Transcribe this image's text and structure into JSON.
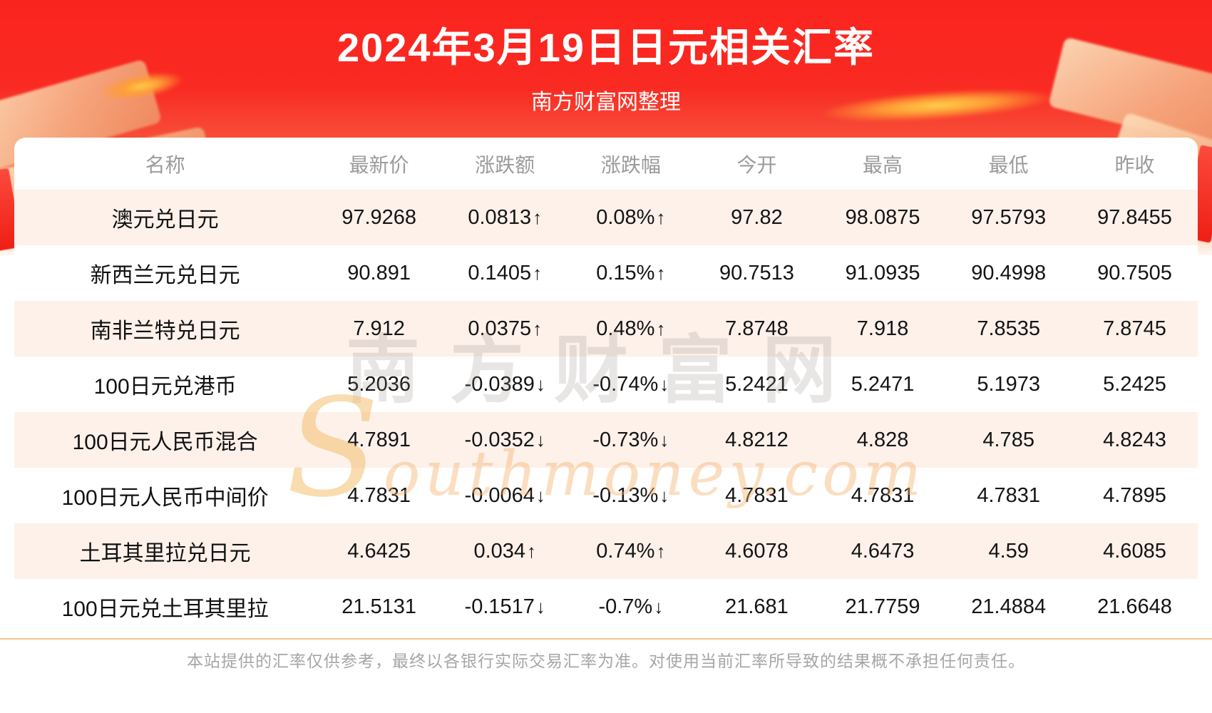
{
  "header": {
    "title": "2024年3月19日日元相关汇率",
    "subtitle": "南方财富网整理"
  },
  "chart_data": {
    "type": "table",
    "columns": [
      "名称",
      "最新价",
      "涨跌额",
      "涨跌幅",
      "今开",
      "最高",
      "最低",
      "昨收"
    ],
    "rows": [
      {
        "name": "澳元兑日元",
        "latest": "97.9268",
        "change": "0.0813",
        "change_pct": "0.08%",
        "direction": "up",
        "open": "97.82",
        "high": "98.0875",
        "low": "97.5793",
        "prev_close": "97.8455"
      },
      {
        "name": "新西兰元兑日元",
        "latest": "90.891",
        "change": "0.1405",
        "change_pct": "0.15%",
        "direction": "up",
        "open": "90.7513",
        "high": "91.0935",
        "low": "90.4998",
        "prev_close": "90.7505"
      },
      {
        "name": "南非兰特兑日元",
        "latest": "7.912",
        "change": "0.0375",
        "change_pct": "0.48%",
        "direction": "up",
        "open": "7.8748",
        "high": "7.918",
        "low": "7.8535",
        "prev_close": "7.8745"
      },
      {
        "name": "100日元兑港币",
        "latest": "5.2036",
        "change": "-0.0389",
        "change_pct": "-0.74%",
        "direction": "down",
        "open": "5.2421",
        "high": "5.2471",
        "low": "5.1973",
        "prev_close": "5.2425"
      },
      {
        "name": "100日元人民币混合",
        "latest": "4.7891",
        "change": "-0.0352",
        "change_pct": "-0.73%",
        "direction": "down",
        "open": "4.8212",
        "high": "4.828",
        "low": "4.785",
        "prev_close": "4.8243"
      },
      {
        "name": "100日元人民币中间价",
        "latest": "4.7831",
        "change": "-0.0064",
        "change_pct": "-0.13%",
        "direction": "down",
        "open": "4.7831",
        "high": "4.7831",
        "low": "4.7831",
        "prev_close": "4.7895"
      },
      {
        "name": "土耳其里拉兑日元",
        "latest": "4.6425",
        "change": "0.034",
        "change_pct": "0.74%",
        "direction": "up",
        "open": "4.6078",
        "high": "4.6473",
        "low": "4.59",
        "prev_close": "4.6085"
      },
      {
        "name": "100日元兑土耳其里拉",
        "latest": "21.5131",
        "change": "-0.1517",
        "change_pct": "-0.7%",
        "direction": "down",
        "open": "21.681",
        "high": "21.7759",
        "low": "21.4884",
        "prev_close": "21.6648"
      }
    ],
    "up_arrow": "↑",
    "down_arrow": "↓",
    "legend_note": "red = up, green = down"
  },
  "watermark": {
    "cn": "南方财富网",
    "en": "Southmoney.com"
  },
  "footer": {
    "disclaimer": "本站提供的汇率仅供参考，最终以各银行实际交易汇率为准。对使用当前汇率所导致的结果概不承担任何责任。"
  },
  "colors": {
    "banner_red": "#f92a22",
    "up": "#f40b00",
    "down": "#0c9702",
    "row_alt": "#fdf1ea",
    "header_text": "#9b9b9b",
    "divider": "#f6c28b"
  }
}
